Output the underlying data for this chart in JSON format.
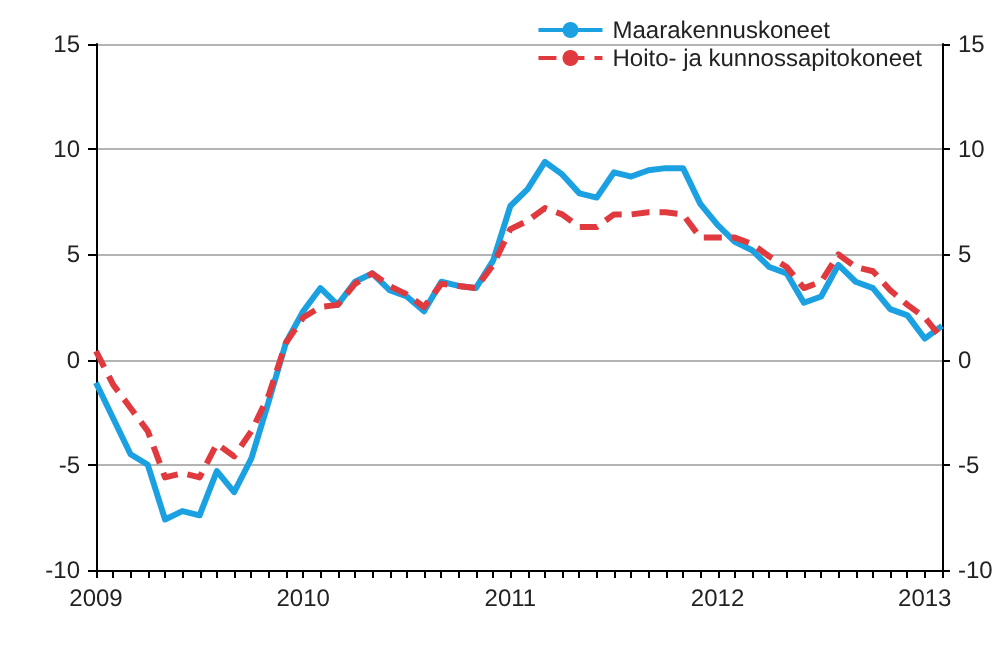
{
  "chart_data": {
    "type": "line",
    "categories": [
      "2009",
      null,
      null,
      null,
      null,
      null,
      null,
      null,
      null,
      null,
      null,
      null,
      "2010",
      null,
      null,
      null,
      null,
      null,
      null,
      null,
      null,
      null,
      null,
      null,
      "2011",
      null,
      null,
      null,
      null,
      null,
      null,
      null,
      null,
      null,
      null,
      null,
      "2012",
      null,
      null,
      null,
      null,
      null,
      null,
      null,
      null,
      null,
      null,
      null,
      "2013",
      null
    ],
    "series": [
      {
        "name": "Maarakennuskoneet",
        "color": "#1ba1e2",
        "line_style": "solid",
        "values": [
          -1.1,
          -2.8,
          -4.5,
          -5.0,
          -7.6,
          -7.2,
          -7.4,
          -5.3,
          -6.3,
          -4.7,
          -2.0,
          0.8,
          2.3,
          3.4,
          2.6,
          3.7,
          4.1,
          3.3,
          3.0,
          2.3,
          3.7,
          3.5,
          3.4,
          4.7,
          7.3,
          8.1,
          9.4,
          8.8,
          7.9,
          7.7,
          8.9,
          8.7,
          9.0,
          9.1,
          9.1,
          7.4,
          6.4,
          5.6,
          5.2,
          4.4,
          4.1,
          2.7,
          3.0,
          4.5,
          3.7,
          3.4,
          2.4,
          2.1,
          1.0,
          1.6
        ]
      },
      {
        "name": "Hoito- ja kunnossapitokoneet",
        "color": "#e03a3e",
        "line_style": "dashed",
        "values": [
          0.4,
          -1.2,
          -2.3,
          -3.4,
          -5.6,
          -5.4,
          -5.6,
          -4.0,
          -4.6,
          -3.4,
          -1.7,
          0.8,
          2.0,
          2.5,
          2.6,
          3.6,
          4.1,
          3.5,
          3.1,
          2.5,
          3.6,
          3.5,
          3.4,
          4.5,
          6.2,
          6.6,
          7.2,
          6.9,
          6.3,
          6.3,
          6.9,
          6.9,
          7.0,
          7.0,
          6.9,
          5.8,
          5.8,
          5.8,
          5.5,
          4.9,
          4.4,
          3.4,
          3.7,
          5.0,
          4.4,
          4.2,
          3.3,
          2.6,
          2.0,
          1.0
        ]
      }
    ],
    "ylim": [
      -10,
      15
    ],
    "yticks": [
      -10,
      -5,
      0,
      5,
      10,
      15
    ],
    "y2lim": [
      -10,
      15
    ],
    "y2ticks": [
      -10,
      -5,
      0,
      5,
      10,
      15
    ],
    "grid": "y",
    "legend": "top right",
    "marker": "none"
  }
}
